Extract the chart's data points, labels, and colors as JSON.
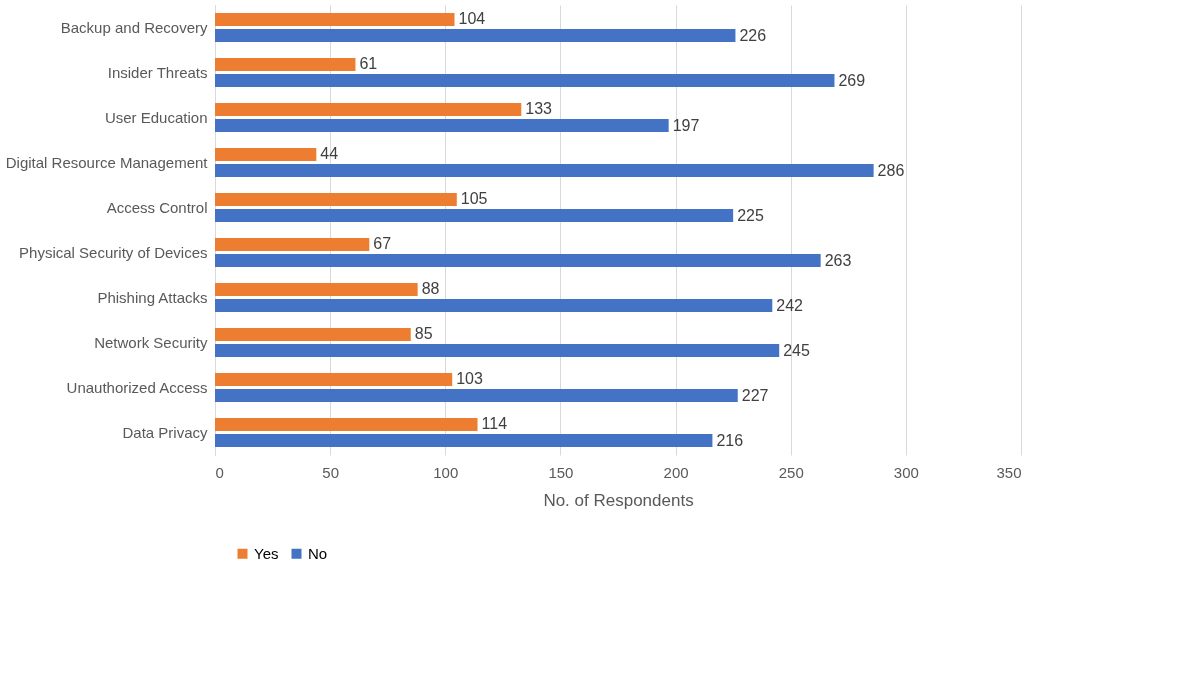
{
  "chart_data": {
    "type": "bar",
    "orientation": "horizontal",
    "categories": [
      "Backup and Recovery",
      "Insider Threats",
      "User Education",
      "Digital Resource Management",
      "Access Control",
      "Physical Security of Devices",
      "Phishing Attacks",
      "Network Security",
      "Unauthorized Access",
      "Data Privacy"
    ],
    "series": [
      {
        "name": "Yes",
        "color": "#ed7d31",
        "values": [
          104,
          61,
          133,
          44,
          105,
          67,
          88,
          85,
          103,
          114
        ]
      },
      {
        "name": "No",
        "color": "#4472c4",
        "values": [
          226,
          269,
          197,
          286,
          225,
          263,
          242,
          245,
          227,
          216
        ]
      }
    ],
    "xlim": [
      0,
      350
    ],
    "xticks": [
      0,
      50,
      100,
      150,
      200,
      250,
      300,
      350
    ],
    "xlabel": "No. of Respondents",
    "grid": "x",
    "legend": "bottom",
    "data_labels": true
  }
}
